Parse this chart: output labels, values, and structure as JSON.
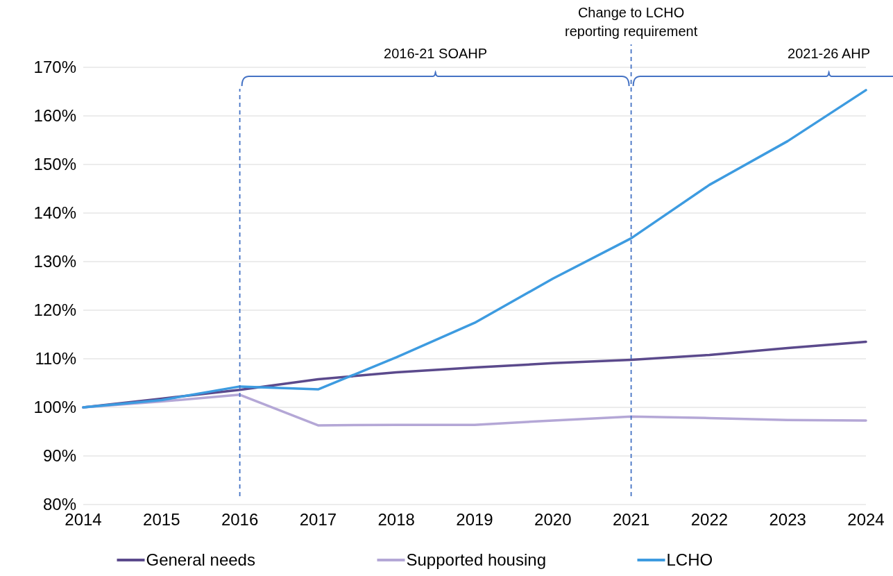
{
  "chart_data": {
    "type": "line",
    "categories": [
      "2014",
      "2015",
      "2016",
      "2017",
      "2018",
      "2019",
      "2020",
      "2021",
      "2022",
      "2023",
      "2024"
    ],
    "series": [
      {
        "name": "General needs",
        "color": "#5b4a8c",
        "values": [
          100,
          101.8,
          103.6,
          105.8,
          107.2,
          108.2,
          109.1,
          109.8,
          110.8,
          112.2,
          113.5
        ]
      },
      {
        "name": "Supported housing",
        "color": "#b4a7d6",
        "values": [
          100,
          101.2,
          102.6,
          96.3,
          96.4,
          96.4,
          97.3,
          98.1,
          97.8,
          97.4,
          97.3
        ]
      },
      {
        "name": "LCHO",
        "color": "#3d9be0",
        "values": [
          100,
          101.5,
          104.3,
          103.7,
          110.3,
          117.4,
          126.5,
          134.8,
          145.8,
          154.8,
          165.3
        ]
      }
    ],
    "ylim": [
      80,
      170
    ],
    "yticks": [
      {
        "value": 80,
        "label": "80%"
      },
      {
        "value": 90,
        "label": "90%"
      },
      {
        "value": 100,
        "label": "100%"
      },
      {
        "value": 110,
        "label": "110%"
      },
      {
        "value": 120,
        "label": "120%"
      },
      {
        "value": 130,
        "label": "130%"
      },
      {
        "value": 140,
        "label": "140%"
      },
      {
        "value": 150,
        "label": "150%"
      },
      {
        "value": 160,
        "label": "160%"
      },
      {
        "value": 170,
        "label": "170%"
      }
    ],
    "grid": "y",
    "legend": "bottom",
    "marker": "none",
    "line_style": "solid",
    "ref_lines": [
      {
        "axis": "x",
        "value": "2016",
        "color": "#4472c4",
        "line_style": "dashed"
      },
      {
        "axis": "x",
        "value": "2021",
        "label": "Change to LCHO reporting requirement",
        "color": "#4472c4",
        "line_style": "dashed"
      }
    ],
    "annotations": [
      "2016-21 SOAHP",
      "2021-26 AHP"
    ]
  }
}
